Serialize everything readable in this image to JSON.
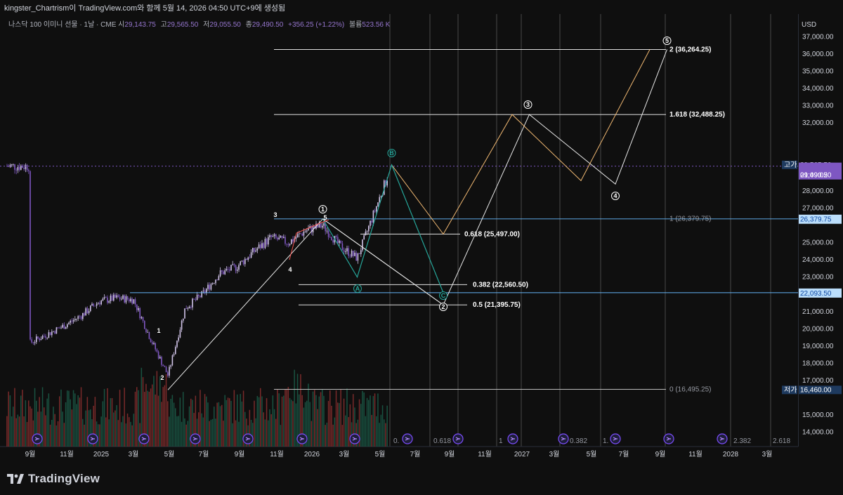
{
  "header": {
    "topline": "kingster_Chartrism이 TradingView.com와 함께 5월 14, 2026 04:50 UTC+9에 생성됨",
    "symbol": "나스닥 100 이미니 선물 · 1날 · CME",
    "open_label": "시",
    "open": "29,143.75",
    "high_label": "고",
    "high": "29,565.50",
    "low_label": "저",
    "low": "29,055.50",
    "close_label": "종",
    "close": "29,490.50",
    "change": "+356.25 (+1.22%)",
    "volume_label": "볼륨",
    "volume": "523.56 K"
  },
  "axis": {
    "currency": "USD",
    "price_ticks": [
      "37,000.00",
      "36,000.00",
      "35,000.00",
      "34,000.00",
      "33,000.00",
      "32,000.00",
      "29,000.00",
      "28,000.00",
      "27,000.00",
      "25,000.00",
      "24,000.00",
      "23,000.00",
      "21,000.00",
      "20,000.00",
      "19,000.00",
      "18,000.00",
      "17,000.00",
      "15,000.00",
      "14,000.00"
    ],
    "time_ticks": [
      "9월",
      "11월",
      "2025",
      "3월",
      "5월",
      "7월",
      "9월",
      "11월",
      "2026",
      "3월",
      "5월",
      "7월",
      "9월",
      "11월",
      "2027",
      "3월",
      "5월",
      "7월",
      "9월",
      "11월",
      "2028",
      "3월"
    ]
  },
  "price_tags": {
    "high_label": "고가",
    "high_value": "29,565.50",
    "last_value": "29,490.50",
    "countdown": "01:09:02",
    "fib1_value": "26,379.75",
    "support_value": "22,093.50",
    "low_label": "저가",
    "low_value": "16,460.00"
  },
  "fib_labels": {
    "f2": "2 (36,264.25)",
    "f1618": "1.618 (32,488.25)",
    "f1": "1 (26,379.75)",
    "f0618": "0.618 (25,497.00)",
    "f0382": "0.382 (22,560.50)",
    "f05": "0.5 (21,395.75)",
    "f0": "0 (16,495.25)"
  },
  "bottom_fib_labels": [
    "0.",
    "0.618",
    "1",
    "0.382",
    "1.",
    "2.382",
    "2.618"
  ],
  "wave_labels": {
    "w1": "1",
    "w2": "2",
    "w3": "3",
    "w4": "4",
    "w5": "5",
    "c1": "1",
    "c2": "2",
    "c3": "3",
    "c4": "4",
    "c5": "5",
    "cA": "A",
    "cB": "B",
    "cC": "C"
  },
  "footer": {
    "brand": "TradingView"
  },
  "chart_data": {
    "type": "candlestick",
    "title": "나스닥 100 이미니 선물 · 1날 · CME",
    "ylabel": "USD",
    "ylim": [
      13700,
      38000
    ],
    "x_range": [
      "2024-08",
      "2028-04"
    ],
    "ohlc_last": {
      "open": 29143.75,
      "high": 29565.5,
      "low": 29055.5,
      "close": 29490.5
    },
    "price_path": [
      {
        "date": "2024-08",
        "close": 19200
      },
      {
        "date": "2024-09",
        "close": 19700
      },
      {
        "date": "2024-10",
        "close": 20200
      },
      {
        "date": "2024-11",
        "close": 20800
      },
      {
        "date": "2024-12",
        "close": 21600
      },
      {
        "date": "2025-01",
        "close": 21800
      },
      {
        "date": "2025-02",
        "close": 21700
      },
      {
        "date": "2025-03",
        "close": 19400
      },
      {
        "date": "2025-04",
        "close": 17300
      },
      {
        "date": "2025-05",
        "close": 21200
      },
      {
        "date": "2025-06",
        "close": 22000
      },
      {
        "date": "2025-07",
        "close": 23200
      },
      {
        "date": "2025-08",
        "close": 23600
      },
      {
        "date": "2025-09",
        "close": 24500
      },
      {
        "date": "2025-10",
        "close": 25300
      },
      {
        "date": "2025-11",
        "close": 25000
      },
      {
        "date": "2025-12",
        "close": 25700
      },
      {
        "date": "2026-01",
        "close": 26000
      },
      {
        "date": "2026-02",
        "close": 24800
      },
      {
        "date": "2026-03",
        "close": 24100
      },
      {
        "date": "2026-04",
        "close": 26800
      },
      {
        "date": "2026-05",
        "close": 29490.5
      }
    ],
    "fib_levels": [
      {
        "ratio": 0,
        "price": 16495.25
      },
      {
        "ratio": 0.382,
        "price": 22560.5
      },
      {
        "ratio": 0.5,
        "price": 21395.75
      },
      {
        "ratio": 0.618,
        "price": 25497.0
      },
      {
        "ratio": 1,
        "price": 26379.75
      },
      {
        "ratio": 1.618,
        "price": 32488.25
      },
      {
        "ratio": 2,
        "price": 36264.25
      }
    ],
    "horizontal_levels": [
      22093.5,
      26379.75
    ],
    "wave_projection_white": [
      {
        "label": "2",
        "date": "2025-04",
        "price": 16460
      },
      {
        "label": "1",
        "date": "2026-01",
        "price": 26379.75
      },
      {
        "label": "2",
        "date": "2026-08",
        "price": 21395.75
      },
      {
        "label": "3",
        "date": "2027-01",
        "price": 32488.25
      },
      {
        "label": "4",
        "date": "2027-06",
        "price": 28400
      },
      {
        "label": "5",
        "date": "2027-09",
        "price": 36264.25
      }
    ],
    "wave_projection_orange": [
      {
        "date": "2026-05",
        "price": 29565.5
      },
      {
        "date": "2026-08",
        "price": 25497.0
      },
      {
        "date": "2026-12",
        "price": 32488.25
      },
      {
        "date": "2027-04",
        "price": 28600
      },
      {
        "date": "2027-08",
        "price": 36264.25
      }
    ],
    "abc_correction": [
      {
        "label": "A",
        "date": "2026-03",
        "price": 23000
      },
      {
        "label": "B",
        "date": "2026-05",
        "price": 29565.5
      },
      {
        "label": "C",
        "date": "2026-08",
        "price": 22093.5
      }
    ]
  }
}
